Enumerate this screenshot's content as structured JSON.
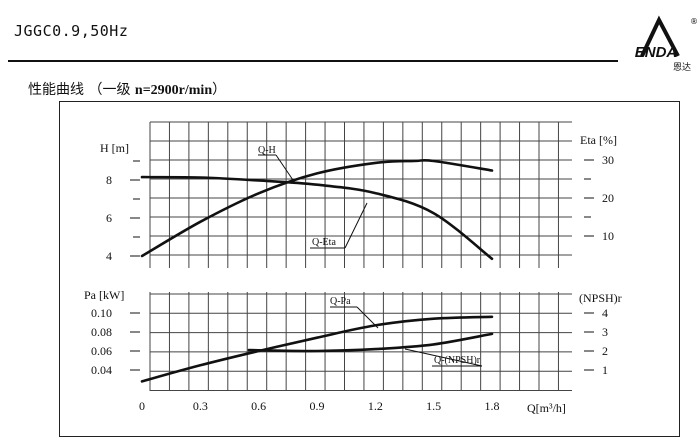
{
  "header": {
    "model": "JGGC0.9,50Hz",
    "subtitle_cn": "性能曲线 （一级 ",
    "subtitle_bold": "n=2900r/min",
    "subtitle_end": "）",
    "logo_text": "ENDA",
    "logo_cn": "恩达",
    "registered_mark": "®"
  },
  "colors": {
    "line": "#111111",
    "grid": "#444444"
  },
  "chart_data": {
    "type": "line",
    "x_ticks": [
      "0",
      "0.3",
      "0.6",
      "0.9",
      "1.2",
      "1.5",
      "1.8"
    ],
    "x_label": "Q[m³/h]",
    "x_range": [
      0,
      1.8
    ],
    "grid": true,
    "axes": {
      "H": {
        "label": "H [m]",
        "ticks": [
          "4",
          "6",
          "8"
        ],
        "range": [
          4,
          10
        ]
      },
      "Eta": {
        "label": "Eta [%]",
        "ticks": [
          "10",
          "20",
          "30"
        ],
        "range": [
          0,
          31
        ]
      },
      "Pa": {
        "label": "Pa [kW]",
        "ticks": [
          "0.04",
          "0.06",
          "0.08",
          "0.10"
        ],
        "range": [
          0.02,
          0.1
        ]
      },
      "NPSH": {
        "label": "(NPSH)r",
        "ticks": [
          "1",
          "2",
          "3",
          "4"
        ],
        "range": [
          0,
          4
        ]
      }
    },
    "series": [
      {
        "name": "Q-H",
        "axis": "H",
        "x": [
          0,
          0.3,
          0.6,
          0.9,
          1.2,
          1.4,
          1.5,
          1.8
        ],
        "y": [
          4.0,
          5.8,
          7.3,
          8.35,
          8.9,
          9.0,
          9.0,
          8.5
        ]
      },
      {
        "name": "Q-Eta",
        "axis": "Eta",
        "x": [
          0,
          0.3,
          0.6,
          0.9,
          1.2,
          1.5,
          1.8
        ],
        "y": [
          25.5,
          25.4,
          24.6,
          23.5,
          21.3,
          16.0,
          4.0
        ]
      },
      {
        "name": "Q-Pa",
        "axis": "Pa",
        "x": [
          0,
          0.3,
          0.6,
          0.9,
          1.2,
          1.5,
          1.8
        ],
        "y": [
          0.028,
          0.045,
          0.06,
          0.074,
          0.087,
          0.094,
          0.096
        ]
      },
      {
        "name": "Q-(NPSH)r",
        "axis": "NPSH",
        "x": [
          0.55,
          0.9,
          1.2,
          1.5,
          1.8
        ],
        "y": [
          2.05,
          2.0,
          2.1,
          2.35,
          2.9
        ]
      }
    ]
  }
}
